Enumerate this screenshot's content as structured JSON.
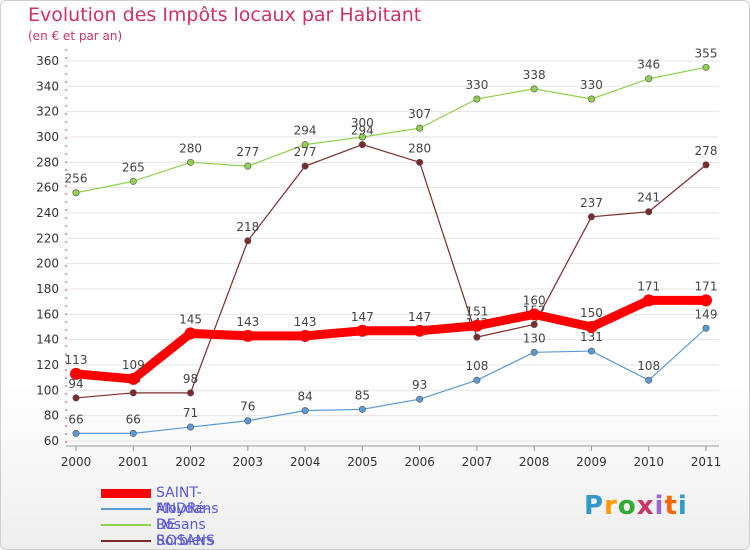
{
  "chart_data": {
    "type": "line",
    "title": "Evolution des Impôts locaux par Habitant",
    "subtitle": "(en € et par an)",
    "xlabel": "",
    "ylabel": "",
    "ylim": [
      60,
      360
    ],
    "yticks": [
      60,
      80,
      100,
      120,
      140,
      160,
      180,
      200,
      220,
      240,
      260,
      280,
      300,
      320,
      340,
      360
    ],
    "categories": [
      "2000",
      "2001",
      "2002",
      "2003",
      "2004",
      "2005",
      "2006",
      "2007",
      "2008",
      "2009",
      "2010",
      "2011"
    ],
    "legend_position": "bottom-left",
    "series": [
      {
        "name": "SAINT-ANDRé-DE-ROSANS",
        "color": "#ff0000",
        "values": [
          113,
          109,
          145,
          143,
          143,
          147,
          147,
          151,
          160,
          150,
          171,
          171
        ],
        "thick": true
      },
      {
        "name": "Moydans",
        "color": "#5b9bd5",
        "values": [
          66,
          66,
          71,
          76,
          84,
          85,
          93,
          108,
          130,
          131,
          108,
          149
        ],
        "thick": false
      },
      {
        "name": "Rosans",
        "color": "#92d050",
        "values": [
          256,
          265,
          280,
          277,
          294,
          300,
          307,
          330,
          338,
          330,
          346,
          355
        ],
        "thick": false
      },
      {
        "name": "Sorbiers",
        "color": "#7f2a2a",
        "values": [
          94,
          98,
          98,
          218,
          277,
          294,
          280,
          142,
          152,
          237,
          241,
          278
        ],
        "thick": false
      }
    ]
  },
  "brand": {
    "text": "Proxiti",
    "colors": [
      "#3399cc",
      "#ff9900",
      "#33aa33",
      "#cc3366",
      "#9966cc",
      "#ff6600",
      "#3399cc"
    ]
  }
}
